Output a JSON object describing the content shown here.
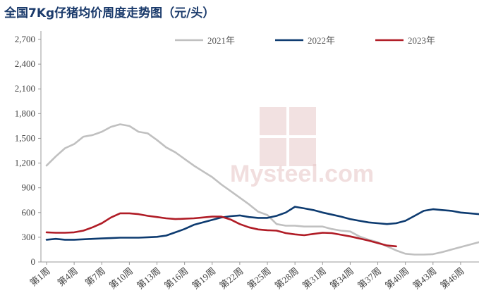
{
  "title": "全国7Kg仔猪均价周度走势图（元/头）",
  "colors": {
    "title": "#1a3a6b",
    "axis": "#999999",
    "watermark": "#e8c9c9"
  },
  "watermark": {
    "text_latin": "Mysteel.com"
  },
  "chart_data": {
    "type": "line",
    "title": "全国7Kg仔猪均价周度走势图（元/头）",
    "xlabel": "",
    "ylabel": "",
    "ylim": [
      0,
      2700
    ],
    "yticks": [
      0,
      300,
      600,
      900,
      1200,
      1500,
      1800,
      2100,
      2400,
      2700
    ],
    "ytick_labels": [
      "0",
      "300",
      "600",
      "900",
      "1,200",
      "1,500",
      "1,800",
      "2,100",
      "2,400",
      "2,700"
    ],
    "x_range": [
      1,
      48
    ],
    "x_tick_weeks": [
      1,
      4,
      7,
      10,
      13,
      16,
      19,
      22,
      25,
      28,
      31,
      34,
      37,
      40,
      43,
      46
    ],
    "x_tick_labels": [
      "第1周",
      "第4周",
      "第7周",
      "第10周",
      "第13周",
      "第16周",
      "第19周",
      "第22周",
      "第25周",
      "第28周",
      "第31周",
      "第34周",
      "第37周",
      "第40周",
      "第43周",
      "第46周"
    ],
    "grid": false,
    "legend_position": "top",
    "series": [
      {
        "name": "2021年",
        "color": "#c0c0c0",
        "x": [
          1,
          2,
          3,
          4,
          5,
          6,
          7,
          8,
          9,
          10,
          11,
          12,
          13,
          14,
          15,
          16,
          17,
          18,
          19,
          20,
          21,
          22,
          23,
          24,
          25,
          26,
          27,
          28,
          29,
          30,
          31,
          32,
          33,
          34,
          35,
          36,
          37,
          38,
          39,
          40,
          41,
          42,
          43,
          44,
          45,
          46,
          47,
          48
        ],
        "values": [
          1170,
          1280,
          1380,
          1430,
          1520,
          1540,
          1580,
          1640,
          1670,
          1650,
          1580,
          1560,
          1480,
          1390,
          1330,
          1250,
          1170,
          1100,
          1030,
          940,
          860,
          780,
          700,
          610,
          570,
          460,
          440,
          440,
          430,
          430,
          430,
          400,
          380,
          370,
          310,
          270,
          240,
          190,
          140,
          100,
          90,
          90,
          95,
          120,
          150,
          180,
          210,
          240
        ]
      },
      {
        "name": "2022年",
        "color": "#0d3b70",
        "x": [
          1,
          2,
          3,
          4,
          5,
          6,
          7,
          8,
          9,
          10,
          11,
          12,
          13,
          14,
          15,
          16,
          17,
          18,
          19,
          20,
          21,
          22,
          23,
          24,
          25,
          26,
          27,
          28,
          29,
          30,
          31,
          32,
          33,
          34,
          35,
          36,
          37,
          38,
          39,
          40,
          41,
          42,
          43,
          44,
          45,
          46,
          47,
          48
        ],
        "values": [
          270,
          280,
          270,
          270,
          275,
          280,
          285,
          290,
          295,
          295,
          295,
          300,
          305,
          320,
          360,
          400,
          450,
          480,
          510,
          540,
          555,
          565,
          545,
          535,
          535,
          560,
          600,
          670,
          650,
          630,
          600,
          575,
          550,
          520,
          500,
          480,
          470,
          460,
          470,
          500,
          560,
          620,
          640,
          630,
          620,
          600,
          590,
          580
        ]
      },
      {
        "name": "2023年",
        "color": "#b01c26",
        "x": [
          1,
          2,
          3,
          4,
          5,
          6,
          7,
          8,
          9,
          10,
          11,
          12,
          13,
          14,
          15,
          16,
          17,
          18,
          19,
          20,
          21,
          22,
          23,
          24,
          25,
          26,
          27,
          28,
          29,
          30,
          31,
          32,
          33,
          34,
          35,
          36,
          37,
          38,
          39
        ],
        "values": [
          360,
          355,
          355,
          360,
          380,
          420,
          470,
          540,
          590,
          590,
          580,
          560,
          545,
          530,
          520,
          525,
          530,
          540,
          550,
          550,
          515,
          460,
          420,
          395,
          385,
          380,
          350,
          335,
          325,
          340,
          355,
          350,
          330,
          310,
          285,
          260,
          230,
          200,
          190
        ]
      }
    ]
  }
}
